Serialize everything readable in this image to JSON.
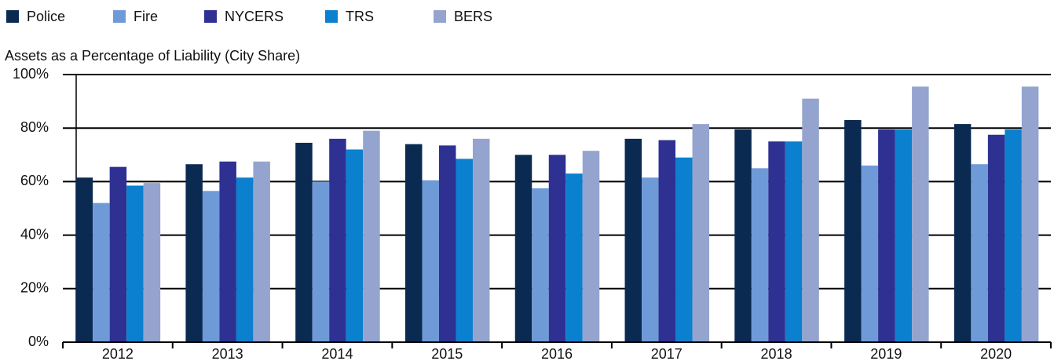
{
  "chart_data": {
    "type": "bar",
    "title": "Assets as a Percentage of Liability (City Share)",
    "categories": [
      "2012",
      "2013",
      "2014",
      "2015",
      "2016",
      "2017",
      "2018",
      "2019",
      "2020"
    ],
    "series": [
      {
        "name": "Police",
        "color": "#0b2a52",
        "values": [
          61.5,
          66.5,
          74.5,
          74,
          70,
          76,
          79.5,
          83,
          81.5
        ]
      },
      {
        "name": "Fire",
        "color": "#6f9ad8",
        "values": [
          52,
          56.5,
          60,
          60.5,
          57.5,
          61.5,
          65,
          66,
          66.5
        ]
      },
      {
        "name": "NYCERS",
        "color": "#2e3192",
        "values": [
          65.5,
          67.5,
          76,
          73.5,
          70,
          75.5,
          75,
          79.5,
          77.5
        ]
      },
      {
        "name": "TRS",
        "color": "#0b80cf",
        "values": [
          58.5,
          61.5,
          72,
          68.5,
          63,
          69,
          75,
          79.5,
          79.5
        ]
      },
      {
        "name": "BERS",
        "color": "#94a4cf",
        "values": [
          59.5,
          67.5,
          79,
          76,
          71.5,
          81.5,
          91,
          95.5,
          95.5
        ]
      }
    ],
    "ylim": [
      0,
      100
    ],
    "yticks": [
      {
        "value": 0,
        "label": "0%"
      },
      {
        "value": 20,
        "label": "20%"
      },
      {
        "value": 40,
        "label": "40%"
      },
      {
        "value": 60,
        "label": "60%"
      },
      {
        "value": 80,
        "label": "80%"
      },
      {
        "value": 100,
        "label": "100%"
      }
    ],
    "grid": true
  }
}
